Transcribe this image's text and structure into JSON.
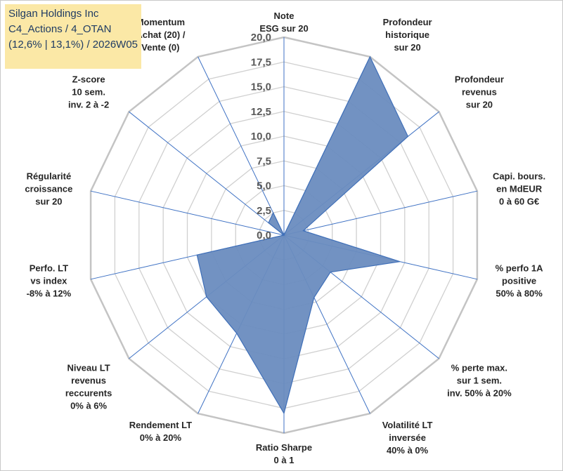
{
  "title": {
    "line1": "Silgan Holdings Inc",
    "line2": "C4_Actions / 4_OTAN",
    "line3": "(12,6% | 13,1%) / 2026W05"
  },
  "chart_data": {
    "type": "radar",
    "rmin": 0,
    "rmax": 20,
    "rstep": 2.5,
    "tick_labels": [
      "0,0",
      "2,5",
      "5,0",
      "7,5",
      "10,0",
      "12,5",
      "15,0",
      "17,5",
      "20,0"
    ],
    "axes": [
      [
        "Note",
        "ESG sur 20"
      ],
      [
        "Profondeur",
        "historique",
        "sur 20"
      ],
      [
        "Profondeur",
        "revenus",
        "sur 20"
      ],
      [
        "Capi. bours.",
        "en MdEUR",
        "0 à 60 G€"
      ],
      [
        "% perfo 1A",
        "positive",
        "50% à 80%"
      ],
      [
        "% perte max.",
        "sur 1 sem.",
        "inv. 50% à 20%"
      ],
      [
        "Volatilité LT",
        "inversée",
        "40% à 0%"
      ],
      [
        "Ratio Sharpe",
        "0 à 1"
      ],
      [
        "Rendement LT",
        "0% à 20%"
      ],
      [
        "Niveau LT",
        "revenus",
        "reccurents",
        "0% à 6%"
      ],
      [
        "Perfo. LT",
        "vs index",
        "-8% à 12%"
      ],
      [
        "Régularité",
        "croissance",
        "sur 20"
      ],
      [
        "Z-score",
        "10 sem.",
        "inv. 2 à -2"
      ],
      [
        "Momentum",
        "Achat (20) /",
        "Vente (0)"
      ]
    ],
    "series": [
      {
        "name": "Silgan Holdings Inc",
        "values": [
          0,
          20,
          16,
          2,
          12,
          6,
          7,
          18,
          11,
          10,
          9,
          0,
          2,
          2.5
        ],
        "fill": "#6a8cbf",
        "stroke": "#3f6fb8"
      }
    ],
    "colors": {
      "grid": "#d0d0d0",
      "axis": "#3f72c4"
    }
  }
}
